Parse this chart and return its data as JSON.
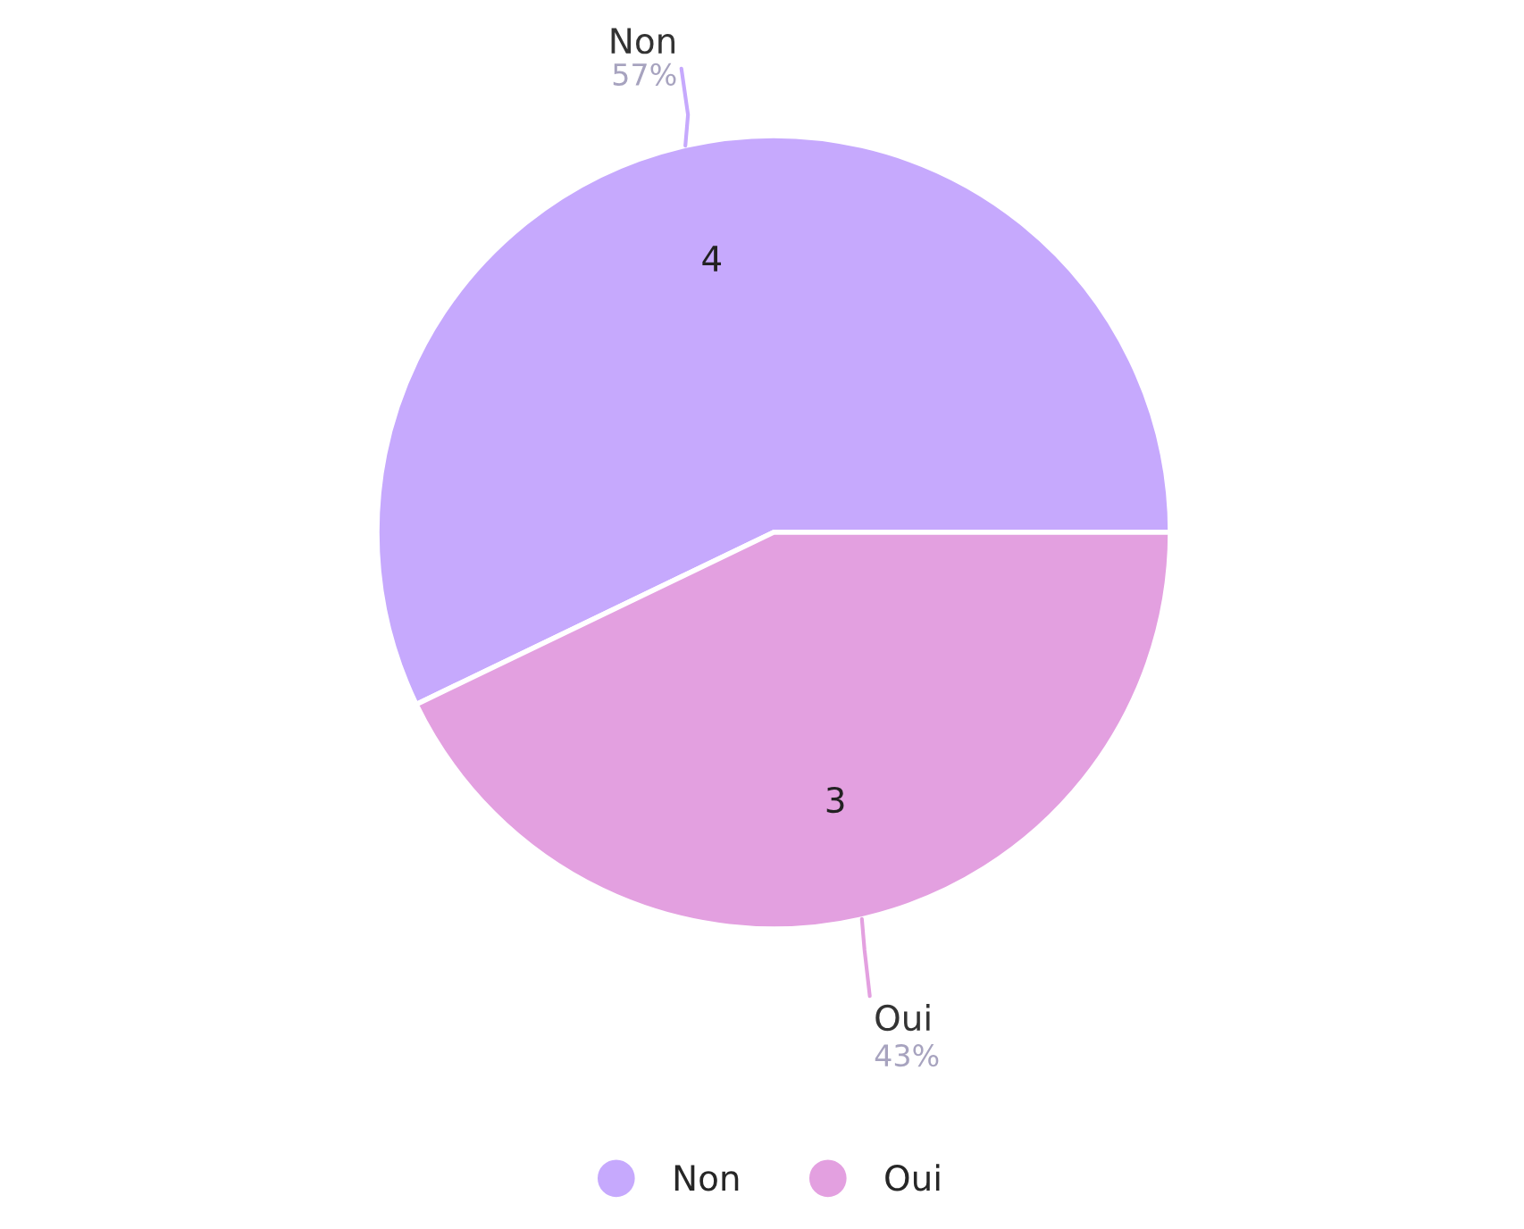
{
  "chart_data": {
    "type": "pie",
    "categories": [
      "Non",
      "Oui"
    ],
    "values": [
      4,
      3
    ],
    "colors": [
      "#c6a9fd",
      "#e3a0e0"
    ],
    "data_labels": true,
    "annotations": [
      "57%",
      "43%"
    ],
    "legend": "bottom"
  }
}
